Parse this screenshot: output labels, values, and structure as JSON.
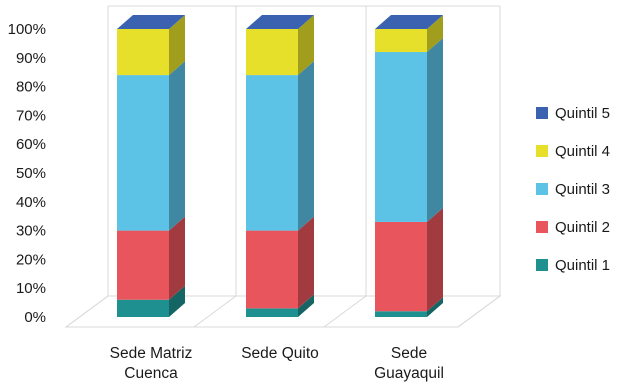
{
  "chart_data": {
    "type": "bar",
    "stacked": true,
    "percent": true,
    "three_d": true,
    "categories": [
      [
        "Sede Matriz",
        "Cuenca"
      ],
      [
        "Sede Quito"
      ],
      [
        "Sede",
        "Guayaquil"
      ]
    ],
    "series": [
      {
        "name": "Quintil 1",
        "color": "#1f9090",
        "values": [
          6,
          3,
          2
        ]
      },
      {
        "name": "Quintil 2",
        "color": "#e8555c",
        "values": [
          24,
          27,
          31
        ]
      },
      {
        "name": "Quintil 3",
        "color": "#5cc2e6",
        "values": [
          54,
          54,
          59
        ]
      },
      {
        "name": "Quintil 4",
        "color": "#e6e02a",
        "values": [
          16,
          16,
          8
        ]
      },
      {
        "name": "Quintil 5",
        "color": "#3a62b0",
        "values": [
          0,
          0,
          0
        ]
      }
    ],
    "y_ticks": [
      "0%",
      "10%",
      "20%",
      "30%",
      "40%",
      "50%",
      "60%",
      "70%",
      "80%",
      "90%",
      "100%"
    ],
    "ylim": [
      0,
      100
    ],
    "legend_position": "right",
    "legend_order": [
      "Quintil 5",
      "Quintil 4",
      "Quintil 3",
      "Quintil 2",
      "Quintil 1"
    ]
  }
}
